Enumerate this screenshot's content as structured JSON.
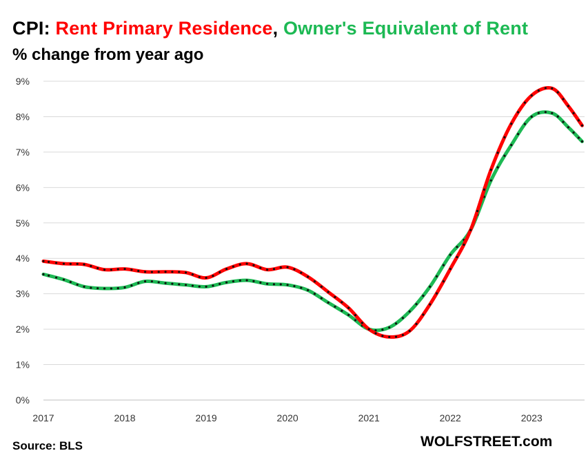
{
  "header": {
    "title_prefix": "CPI: ",
    "title_series1": "Rent Primary  Residence",
    "title_sep": ", ",
    "title_series2": "Owner's Equivalent of Rent",
    "subtitle": "% change from year ago"
  },
  "footer": {
    "source": "Source: BLS",
    "brand": "WOLFSTREET.com"
  },
  "colors": {
    "rent": "#ff0000",
    "oer": "#1db954",
    "marker": "#111111",
    "grid": "#d9d9d9"
  },
  "chart_data": {
    "type": "line",
    "title": "CPI: Rent Primary  Residence, Owner's Equivalent of Rent",
    "subtitle": "% change from year ago",
    "xlabel": "",
    "ylabel": "",
    "ylim": [
      0,
      9
    ],
    "xlim": [
      2017,
      2023.65
    ],
    "y_ticks": [
      "0%",
      "1%",
      "2%",
      "3%",
      "4%",
      "5%",
      "6%",
      "7%",
      "8%",
      "9%"
    ],
    "x_ticks": [
      "2017",
      "2018",
      "2019",
      "2020",
      "2021",
      "2022",
      "2023"
    ],
    "grid": true,
    "legend": "none",
    "series": [
      {
        "name": "Rent Primary  Residence",
        "color": "#ff0000",
        "points": [
          [
            2017.0,
            3.92
          ],
          [
            2017.25,
            3.85
          ],
          [
            2017.5,
            3.83
          ],
          [
            2017.75,
            3.68
          ],
          [
            2018.0,
            3.7
          ],
          [
            2018.25,
            3.62
          ],
          [
            2018.5,
            3.62
          ],
          [
            2018.75,
            3.6
          ],
          [
            2019.0,
            3.45
          ],
          [
            2019.25,
            3.7
          ],
          [
            2019.5,
            3.85
          ],
          [
            2019.75,
            3.68
          ],
          [
            2020.0,
            3.75
          ],
          [
            2020.25,
            3.48
          ],
          [
            2020.5,
            3.05
          ],
          [
            2020.75,
            2.6
          ],
          [
            2021.0,
            2.0
          ],
          [
            2021.25,
            1.78
          ],
          [
            2021.5,
            1.95
          ],
          [
            2021.75,
            2.7
          ],
          [
            2022.0,
            3.7
          ],
          [
            2022.25,
            4.8
          ],
          [
            2022.5,
            6.5
          ],
          [
            2022.75,
            7.8
          ],
          [
            2023.0,
            8.6
          ],
          [
            2023.25,
            8.8
          ],
          [
            2023.45,
            8.3
          ],
          [
            2023.62,
            7.75
          ]
        ]
      },
      {
        "name": "Owner's Equivalent of Rent",
        "color": "#1db954",
        "points": [
          [
            2017.0,
            3.55
          ],
          [
            2017.25,
            3.4
          ],
          [
            2017.5,
            3.2
          ],
          [
            2017.75,
            3.15
          ],
          [
            2018.0,
            3.18
          ],
          [
            2018.25,
            3.35
          ],
          [
            2018.5,
            3.3
          ],
          [
            2018.75,
            3.25
          ],
          [
            2019.0,
            3.2
          ],
          [
            2019.25,
            3.32
          ],
          [
            2019.5,
            3.38
          ],
          [
            2019.75,
            3.28
          ],
          [
            2020.0,
            3.25
          ],
          [
            2020.25,
            3.1
          ],
          [
            2020.5,
            2.75
          ],
          [
            2020.75,
            2.4
          ],
          [
            2021.0,
            2.0
          ],
          [
            2021.25,
            2.05
          ],
          [
            2021.5,
            2.5
          ],
          [
            2021.75,
            3.2
          ],
          [
            2022.0,
            4.1
          ],
          [
            2022.25,
            4.8
          ],
          [
            2022.5,
            6.2
          ],
          [
            2022.75,
            7.2
          ],
          [
            2023.0,
            8.0
          ],
          [
            2023.25,
            8.1
          ],
          [
            2023.45,
            7.7
          ],
          [
            2023.62,
            7.3
          ]
        ]
      }
    ]
  }
}
